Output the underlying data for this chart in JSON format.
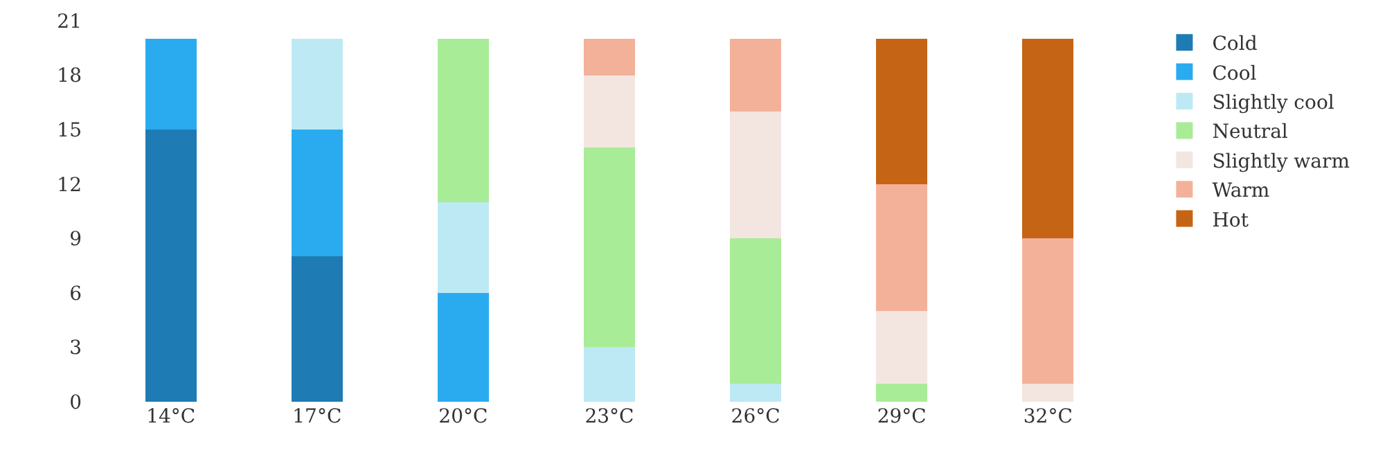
{
  "chart_data": {
    "type": "bar",
    "stacked": true,
    "categories": [
      "14°C",
      "17°C",
      "20°C",
      "23°C",
      "26°C",
      "29°C",
      "32°C"
    ],
    "ylim": [
      0,
      21
    ],
    "yticks": [
      0,
      3,
      6,
      9,
      12,
      15,
      18,
      21
    ],
    "grid": false,
    "legend": "top right",
    "series": [
      {
        "name": "Cold",
        "color": "#1f7bb4",
        "values": [
          15,
          8,
          0,
          0,
          0,
          0,
          0
        ]
      },
      {
        "name": "Cool",
        "color": "#2aabf0",
        "values": [
          5,
          7,
          6,
          0,
          0,
          0,
          0
        ]
      },
      {
        "name": "Slightly cool",
        "color": "#bde9f5",
        "values": [
          0,
          5,
          5,
          3,
          1,
          0,
          0
        ]
      },
      {
        "name": "Neutral",
        "color": "#a8ec98",
        "values": [
          0,
          0,
          9,
          11,
          8,
          1,
          0
        ]
      },
      {
        "name": "Slightly warm",
        "color": "#f3e5e0",
        "values": [
          0,
          0,
          0,
          4,
          7,
          4,
          1
        ]
      },
      {
        "name": "Warm",
        "color": "#f4b19a",
        "values": [
          0,
          0,
          0,
          2,
          4,
          7,
          8
        ]
      },
      {
        "name": "Hot",
        "color": "#c56414",
        "values": [
          0,
          0,
          0,
          0,
          0,
          8,
          11
        ]
      }
    ]
  }
}
